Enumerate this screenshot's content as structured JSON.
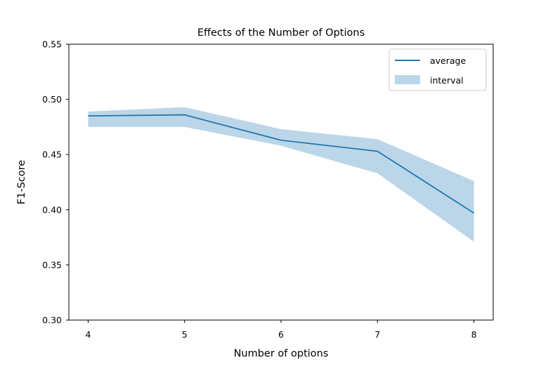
{
  "chart_data": {
    "type": "line",
    "title": "Effects of the Number of Options",
    "xlabel": "Number of options",
    "ylabel": "F1-Score",
    "x": [
      4,
      5,
      6,
      7,
      8
    ],
    "xticks": [
      "4",
      "5",
      "6",
      "7",
      "8"
    ],
    "xlim": [
      3.8,
      8.2
    ],
    "ylim": [
      0.3,
      0.55
    ],
    "yticks": [
      "0.30",
      "0.35",
      "0.40",
      "0.45",
      "0.50",
      "0.55"
    ],
    "series": [
      {
        "name": "average",
        "kind": "line",
        "color": "#1f77b4",
        "values": [
          0.485,
          0.486,
          0.463,
          0.453,
          0.397
        ]
      },
      {
        "name": "interval",
        "kind": "band",
        "color": "#1f77b4",
        "opacity": 0.3,
        "lower": [
          0.475,
          0.475,
          0.458,
          0.433,
          0.371
        ],
        "upper": [
          0.489,
          0.493,
          0.473,
          0.464,
          0.426
        ]
      }
    ],
    "grid": false,
    "legend": "top-right"
  }
}
